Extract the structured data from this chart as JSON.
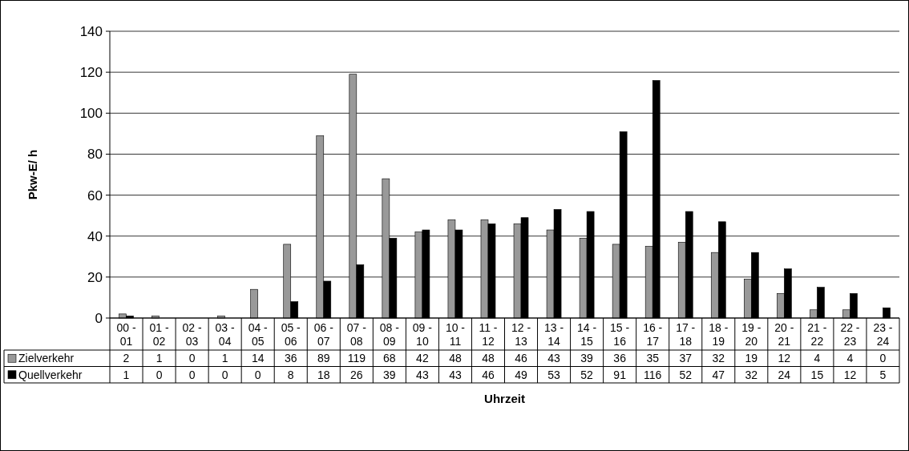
{
  "chart_data": {
    "type": "bar",
    "xlabel": "Uhrzeit",
    "ylabel": "Pkw-E/ h",
    "categories": [
      "00 - 01",
      "01 - 02",
      "02 - 03",
      "03 - 04",
      "04 - 05",
      "05 - 06",
      "06 - 07",
      "07 - 08",
      "08 - 09",
      "09 - 10",
      "10 - 11",
      "11 - 12",
      "12 - 13",
      "13 - 14",
      "14 - 15",
      "15 - 16",
      "16 - 17",
      "17 - 18",
      "18 - 19",
      "19 - 20",
      "20 - 21",
      "21 - 22",
      "22 - 23",
      "23 - 24"
    ],
    "series": [
      {
        "name": "Zielverkehr",
        "color": "#999999",
        "values": [
          2,
          1,
          0,
          1,
          14,
          36,
          89,
          119,
          68,
          42,
          48,
          48,
          46,
          43,
          39,
          36,
          35,
          37,
          32,
          19,
          12,
          4,
          4,
          0
        ]
      },
      {
        "name": "Quellverkehr",
        "color": "#000000",
        "values": [
          1,
          0,
          0,
          0,
          0,
          8,
          18,
          26,
          39,
          43,
          43,
          46,
          49,
          53,
          52,
          91,
          116,
          52,
          47,
          32,
          24,
          15,
          12,
          5
        ]
      }
    ],
    "ylim": [
      0,
      140
    ],
    "yticks": [
      0,
      20,
      40,
      60,
      80,
      100,
      120,
      140
    ],
    "grid": "y",
    "legend": "bottom left",
    "data_labels": true
  }
}
